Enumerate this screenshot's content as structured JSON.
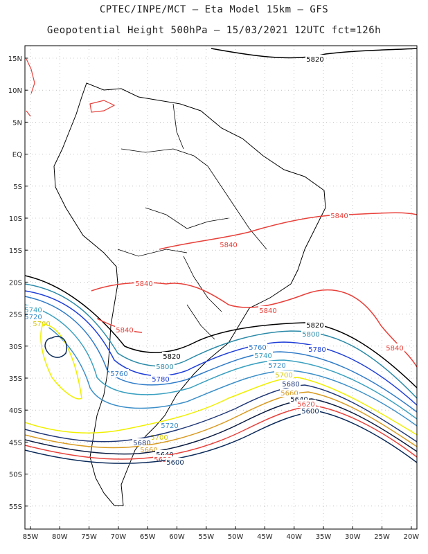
{
  "header": {
    "line1": "CPTEC/INPE/MCT –  Eta Model 15km – GFS",
    "line2": "Geopotential Height 500hPa – 15/03/2021 12UTC fct=126h"
  },
  "axes": {
    "lat_labels": [
      "15N",
      "10N",
      "5N",
      "EQ",
      "5S",
      "10S",
      "15S",
      "20S",
      "25S",
      "30S",
      "35S",
      "40S",
      "45S",
      "50S",
      "55S"
    ],
    "lon_labels": [
      "85W",
      "80W",
      "75W",
      "70W",
      "65W",
      "60W",
      "55W",
      "50W",
      "45W",
      "40W",
      "35W",
      "30W",
      "25W",
      "20W"
    ]
  },
  "contours": [
    {
      "value": "5820",
      "color": "#000000"
    },
    {
      "value": "5840",
      "color": "#e8403a"
    },
    {
      "value": "5800",
      "color": "#2b8aa8"
    },
    {
      "value": "5780",
      "color": "#1f3fd8"
    },
    {
      "value": "5760",
      "color": "#2f7bc8"
    },
    {
      "value": "5740",
      "color": "#3aa0c0"
    },
    {
      "value": "5720",
      "color": "#3b8ec8"
    },
    {
      "value": "5700",
      "color": "#f0f000"
    },
    {
      "value": "5680",
      "color": "#203878"
    },
    {
      "value": "5660",
      "color": "#d89a20"
    },
    {
      "value": "5640",
      "color": "#0a1a40"
    },
    {
      "value": "5620",
      "color": "#e8403a"
    },
    {
      "value": "5600",
      "color": "#0a2a5a"
    }
  ],
  "colors": {
    "grid": "#9a9a9a",
    "coast": "#000000",
    "frame": "#000000"
  }
}
